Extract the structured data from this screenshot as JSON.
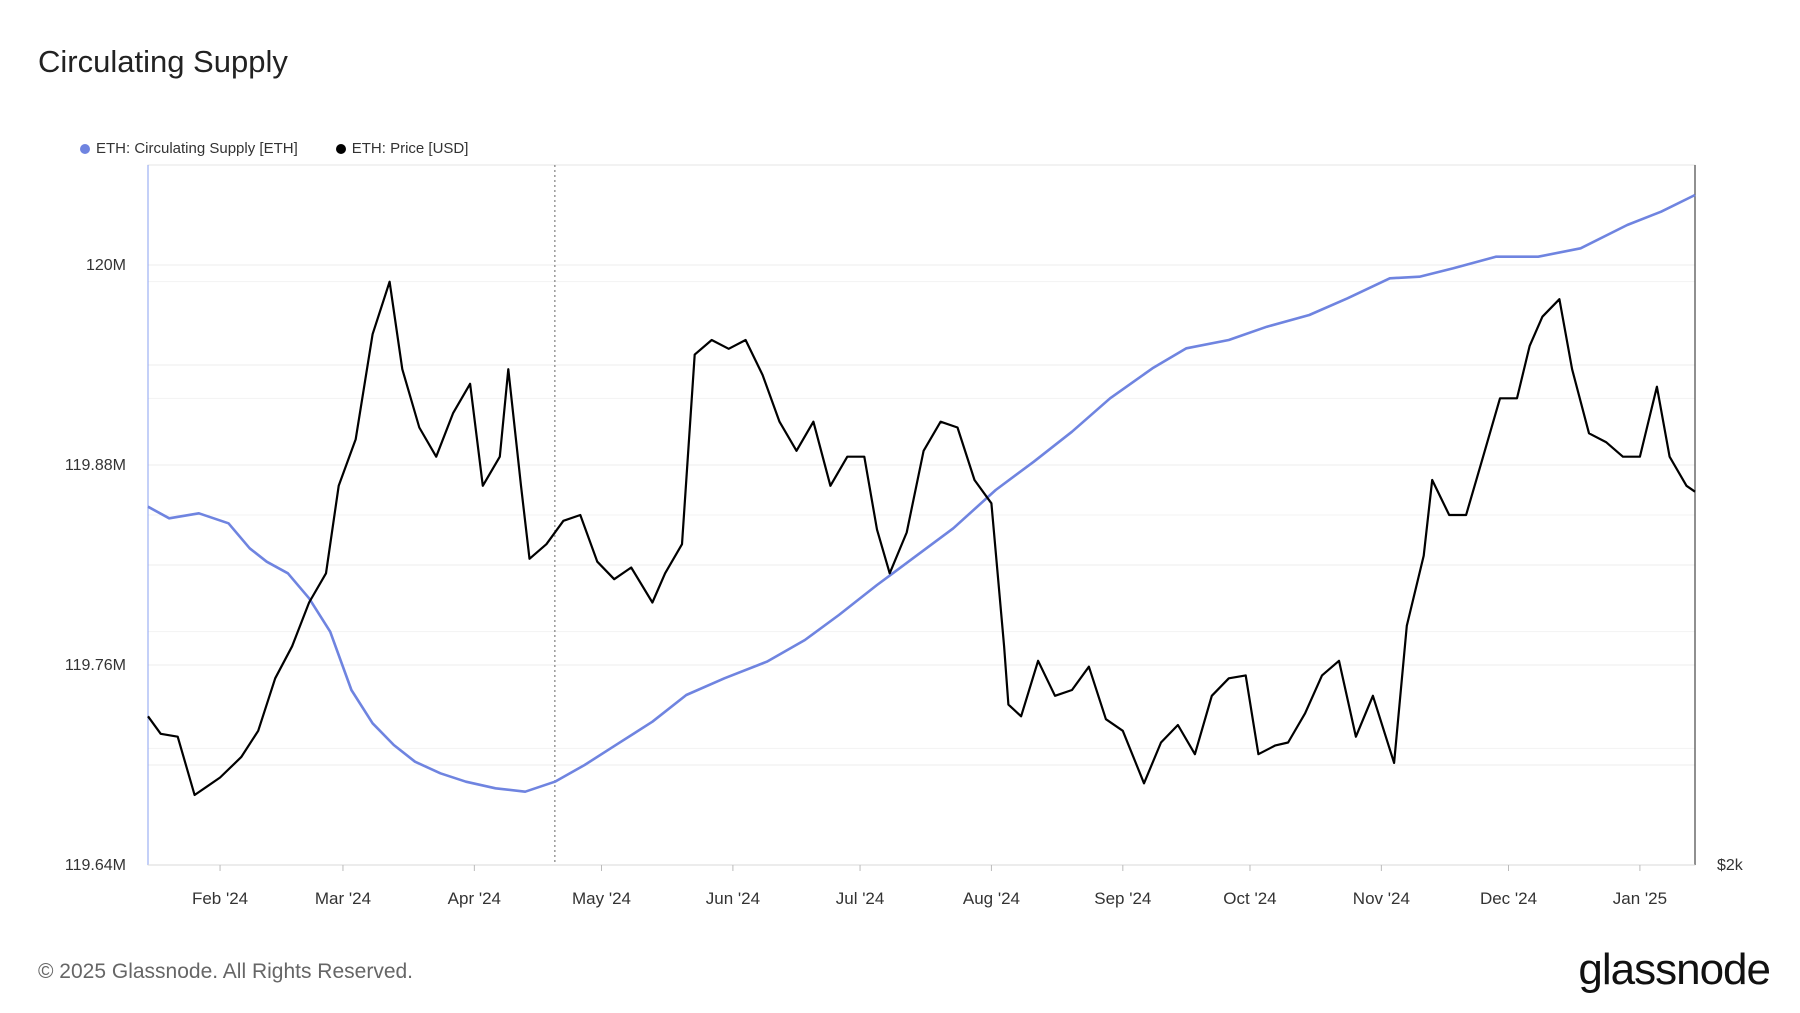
{
  "title": "Circulating Supply",
  "legend": [
    {
      "label": "ETH: Circulating Supply [ETH]",
      "color": "#6f84e0"
    },
    {
      "label": "ETH: Price [USD]",
      "color": "#000000"
    }
  ],
  "footer": "© 2025 Glassnode. All Rights Reserved.",
  "brand": "glassnode",
  "chart_data": {
    "type": "line",
    "x_ticks": [
      "Feb '24",
      "Mar '24",
      "Apr '24",
      "May '24",
      "Jun '24",
      "Jul '24",
      "Aug '24",
      "Sep '24",
      "Oct '24",
      "Nov '24",
      "Dec '24",
      "Jan '25"
    ],
    "y_left_ticks": [
      "120M",
      "119.88M",
      "119.76M",
      "119.64M"
    ],
    "y_left_tick_values": [
      120.0,
      119.88,
      119.76,
      119.64
    ],
    "y_left_range": [
      119.64,
      120.06
    ],
    "y_right_ticks": [
      "$2k"
    ],
    "y_right_tick_values": [
      2000
    ],
    "y_right_range": [
      2000,
      4400
    ],
    "x_range": [
      "2024-01-15",
      "2025-01-14"
    ],
    "grid": true,
    "legend_position": "top-left",
    "series": [
      {
        "name": "ETH: Circulating Supply [ETH]",
        "axis": "left",
        "color": "#6f84e0",
        "x": [
          "2024-01-15",
          "2024-01-20",
          "2024-01-27",
          "2024-02-03",
          "2024-02-08",
          "2024-02-12",
          "2024-02-17",
          "2024-02-22",
          "2024-02-27",
          "2024-03-03",
          "2024-03-08",
          "2024-03-13",
          "2024-03-18",
          "2024-03-24",
          "2024-03-30",
          "2024-04-06",
          "2024-04-13",
          "2024-04-20",
          "2024-04-27",
          "2024-05-05",
          "2024-05-13",
          "2024-05-21",
          "2024-05-30",
          "2024-06-09",
          "2024-06-18",
          "2024-06-26",
          "2024-07-05",
          "2024-07-14",
          "2024-07-23",
          "2024-08-02",
          "2024-08-11",
          "2024-08-20",
          "2024-08-29",
          "2024-09-08",
          "2024-09-16",
          "2024-09-26",
          "2024-10-05",
          "2024-10-15",
          "2024-10-24",
          "2024-11-03",
          "2024-11-10",
          "2024-11-18",
          "2024-11-28",
          "2024-12-08",
          "2024-12-18",
          "2024-12-29",
          "2025-01-06",
          "2025-01-14"
        ],
        "values": [
          119.855,
          119.848,
          119.851,
          119.845,
          119.83,
          119.822,
          119.815,
          119.8,
          119.78,
          119.745,
          119.725,
          119.712,
          119.702,
          119.695,
          119.69,
          119.686,
          119.684,
          119.69,
          119.7,
          119.713,
          119.726,
          119.742,
          119.752,
          119.762,
          119.775,
          119.79,
          119.808,
          119.825,
          119.842,
          119.865,
          119.882,
          119.9,
          119.92,
          119.938,
          119.95,
          119.955,
          119.963,
          119.97,
          119.98,
          119.992,
          119.993,
          119.998,
          120.005,
          120.005,
          120.01,
          120.024,
          120.032,
          120.042
        ]
      },
      {
        "name": "ETH: Price [USD]",
        "axis": "right",
        "color": "#000000",
        "x": [
          "2024-01-15",
          "2024-01-18",
          "2024-01-22",
          "2024-01-26",
          "2024-01-29",
          "2024-02-01",
          "2024-02-06",
          "2024-02-10",
          "2024-02-14",
          "2024-02-18",
          "2024-02-22",
          "2024-02-26",
          "2024-02-29",
          "2024-03-04",
          "2024-03-08",
          "2024-03-12",
          "2024-03-15",
          "2024-03-19",
          "2024-03-23",
          "2024-03-27",
          "2024-03-31",
          "2024-04-03",
          "2024-04-07",
          "2024-04-09",
          "2024-04-12",
          "2024-04-14",
          "2024-04-18",
          "2024-04-22",
          "2024-04-26",
          "2024-04-30",
          "2024-05-04",
          "2024-05-08",
          "2024-05-13",
          "2024-05-16",
          "2024-05-20",
          "2024-05-23",
          "2024-05-27",
          "2024-05-31",
          "2024-06-04",
          "2024-06-08",
          "2024-06-12",
          "2024-06-16",
          "2024-06-20",
          "2024-06-24",
          "2024-06-28",
          "2024-07-02",
          "2024-07-05",
          "2024-07-08",
          "2024-07-12",
          "2024-07-16",
          "2024-07-20",
          "2024-07-24",
          "2024-07-28",
          "2024-08-01",
          "2024-08-04",
          "2024-08-05",
          "2024-08-08",
          "2024-08-12",
          "2024-08-16",
          "2024-08-20",
          "2024-08-24",
          "2024-08-28",
          "2024-09-01",
          "2024-09-06",
          "2024-09-10",
          "2024-09-14",
          "2024-09-18",
          "2024-09-22",
          "2024-09-26",
          "2024-09-30",
          "2024-10-03",
          "2024-10-07",
          "2024-10-10",
          "2024-10-14",
          "2024-10-18",
          "2024-10-22",
          "2024-10-26",
          "2024-10-30",
          "2024-11-04",
          "2024-11-07",
          "2024-11-11",
          "2024-11-13",
          "2024-11-17",
          "2024-11-21",
          "2024-11-25",
          "2024-11-29",
          "2024-12-03",
          "2024-12-06",
          "2024-12-09",
          "2024-12-13",
          "2024-12-16",
          "2024-12-20",
          "2024-12-24",
          "2024-12-28",
          "2025-01-01",
          "2025-01-05",
          "2025-01-08",
          "2025-01-12",
          "2025-01-14"
        ],
        "values": [
          2510,
          2450,
          2440,
          2240,
          2270,
          2300,
          2370,
          2460,
          2640,
          2750,
          2900,
          3000,
          3300,
          3460,
          3820,
          4000,
          3700,
          3500,
          3400,
          3550,
          3650,
          3300,
          3400,
          3700,
          3300,
          3050,
          3100,
          3180,
          3200,
          3040,
          2980,
          3020,
          2900,
          3000,
          3100,
          3750,
          3800,
          3770,
          3800,
          3680,
          3520,
          3420,
          3520,
          3300,
          3400,
          3400,
          3150,
          3000,
          3140,
          3420,
          3520,
          3500,
          3320,
          3240,
          2750,
          2550,
          2510,
          2700,
          2580,
          2600,
          2680,
          2500,
          2460,
          2280,
          2420,
          2480,
          2380,
          2580,
          2640,
          2650,
          2380,
          2410,
          2420,
          2520,
          2650,
          2700,
          2440,
          2580,
          2350,
          2820,
          3060,
          3320,
          3200,
          3200,
          3400,
          3600,
          3600,
          3780,
          3880,
          3940,
          3700,
          3480,
          3450,
          3400,
          3400,
          3640,
          3400,
          3300,
          3280
        ]
      }
    ]
  }
}
